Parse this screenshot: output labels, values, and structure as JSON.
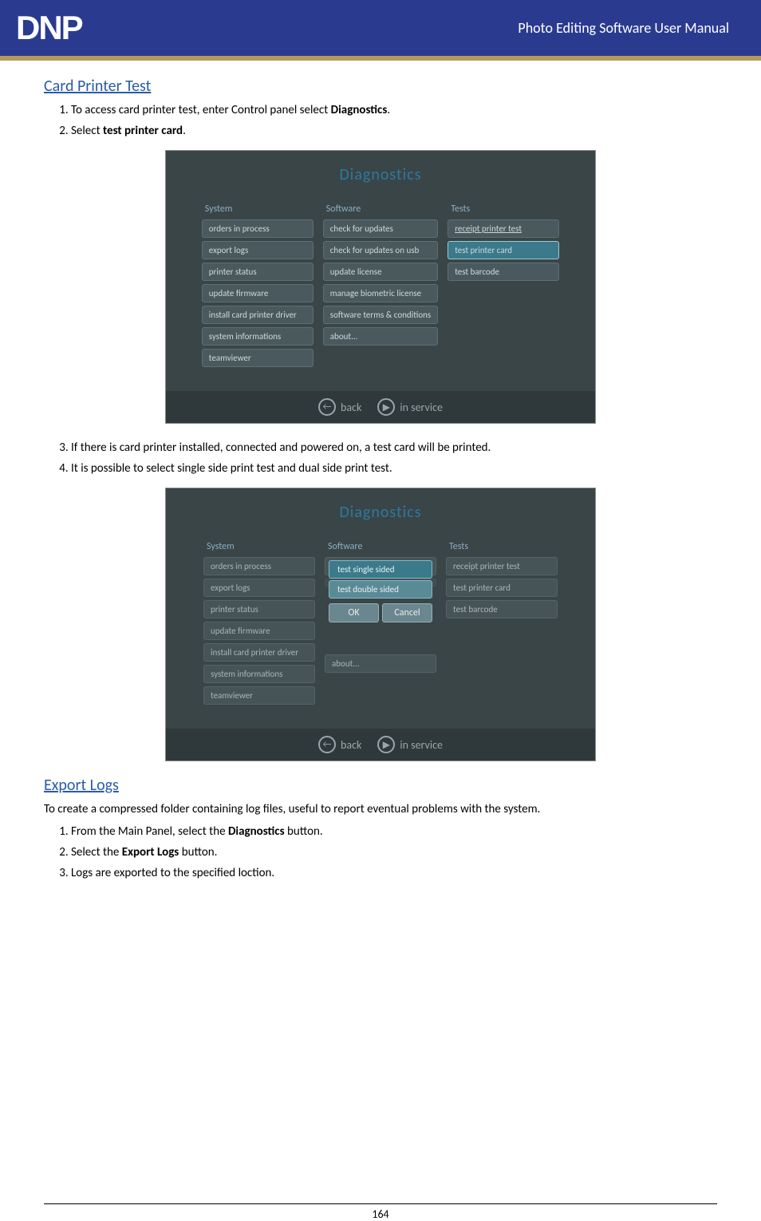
{
  "header": {
    "logo_text": "DNP",
    "title": "Photo Editing Software User Manual"
  },
  "section1": {
    "heading": "Card Printer Test",
    "steps_a": [
      "To access card printer test, enter Control panel select <b>Diagnostics</b>.",
      "Select <b>test printer card</b>."
    ],
    "steps_b": [
      "If there is card printer installed, connected and powered on, a test card will be printed.",
      "It is possible to select single side print test and dual side print test."
    ]
  },
  "diag_panel": {
    "title": "Diagnostics",
    "col_system": {
      "header": "System",
      "items": [
        "orders in process",
        "export logs",
        "printer status",
        "update firmware",
        "install card printer driver",
        "system informations",
        "teamviewer"
      ]
    },
    "col_software": {
      "header": "Software",
      "items": [
        "check for updates",
        "check for updates on usb",
        "update license",
        "manage biometric license",
        "software terms & conditions",
        "about..."
      ]
    },
    "col_tests": {
      "header": "Tests",
      "items": [
        "receipt printer test",
        "test printer card",
        "test barcode"
      ],
      "underlined_idx": 0,
      "highlighted_idx": 1
    },
    "footer": {
      "back": "back",
      "service": "in service"
    }
  },
  "popup": {
    "opt1": "test single sided",
    "opt2": "test double sided",
    "ok": "OK",
    "cancel": "Cancel"
  },
  "section2": {
    "heading": "Export Logs",
    "intro": "To create a compressed folder containing log files, useful to report eventual problems with the system.",
    "steps": [
      "From the Main Panel, select the <b>Diagnostics</b> button.",
      "Select the <b>Export Logs</b> button.",
      "Logs are exported to the specified loction."
    ]
  },
  "page_number": "164",
  "colors": {
    "header_bg": "#2a3b8f",
    "accent": "#b49a5a",
    "link": "#2a5ba8",
    "panel_bg": "#3a4548",
    "btn_bg": "#4a595e",
    "btn_hl": "#3a7a8a"
  }
}
